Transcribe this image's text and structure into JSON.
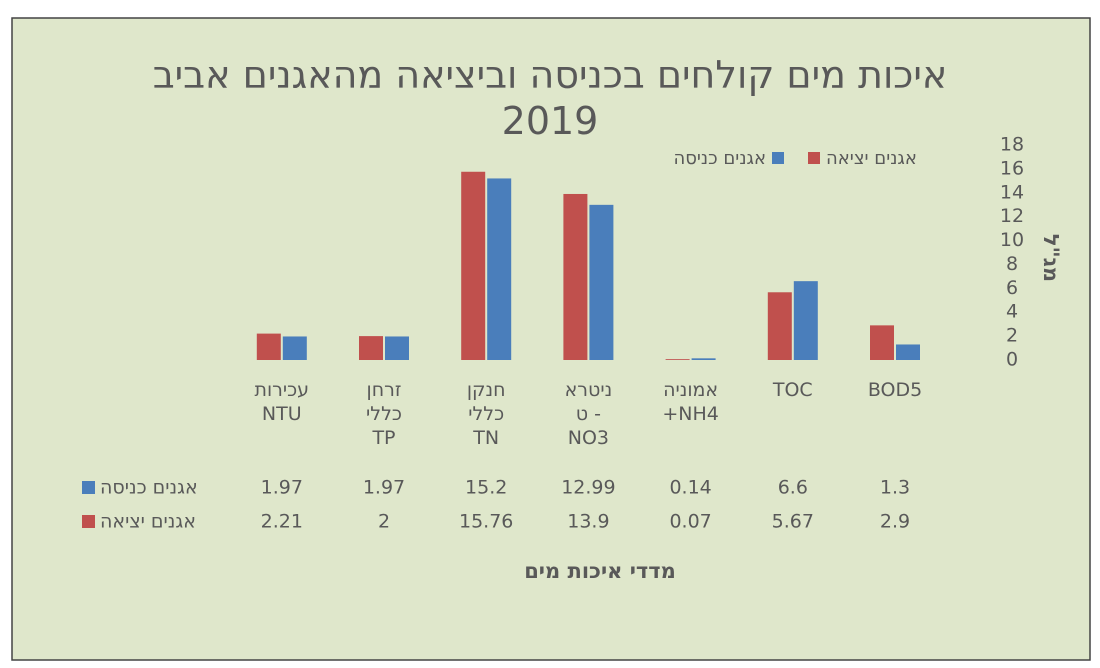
{
  "chart_data": {
    "type": "bar",
    "title": "איכות מים קולחים בכניסה וביציאה מהאגנים אביב\n2019",
    "x_label": "מדדי איכות מים",
    "y_label": "מג\"ל",
    "categories": [
      "BOD5",
      "TOC",
      "אמוניה\nNH4+",
      "ניטרא\n- ט\nNO3",
      "חנקן\nכללי\nTN",
      "זרחן\nכללי\nTP",
      "עכירות\nNTU"
    ],
    "series": [
      {
        "name": "אגנים כניסה",
        "color": "#4a7ebb",
        "values": [
          1.3,
          6.6,
          0.14,
          12.99,
          15.2,
          1.97,
          1.97
        ]
      },
      {
        "name": "אגנים יציאה",
        "color": "#c0504d",
        "values": [
          2.9,
          5.67,
          0.07,
          13.9,
          15.76,
          2,
          2.21
        ]
      }
    ],
    "ylim": [
      0,
      18
    ],
    "yticks": [
      0,
      2,
      4,
      6,
      8,
      10,
      12,
      14,
      16,
      18
    ],
    "grid": false
  }
}
